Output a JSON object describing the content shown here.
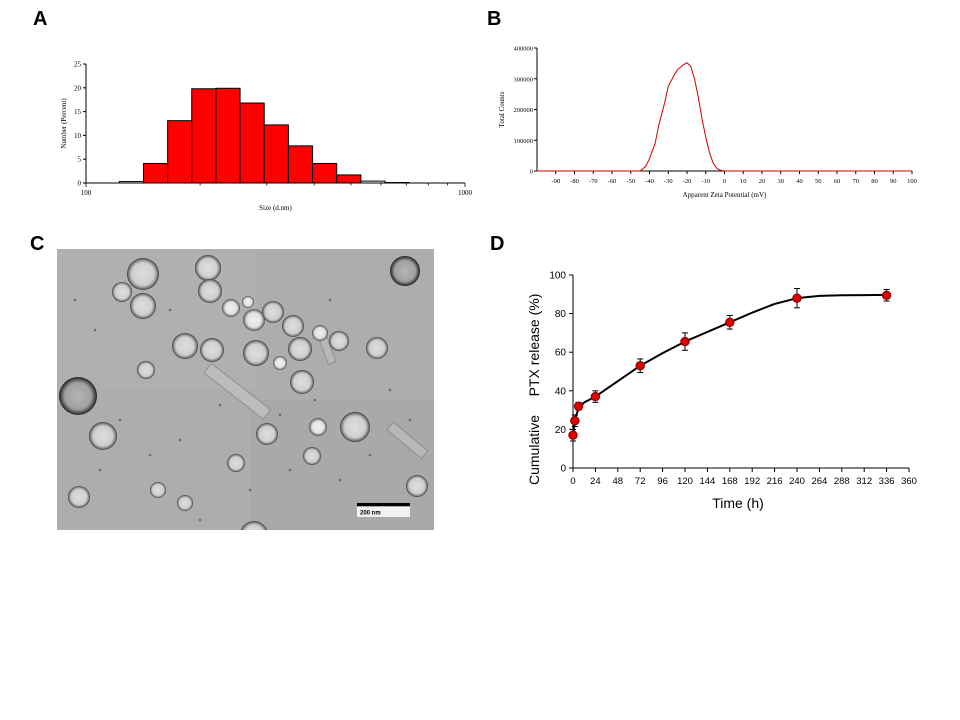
{
  "panels": {
    "a": "A",
    "b": "B",
    "c": "C",
    "d": "D"
  },
  "chart_data": [
    {
      "id": "A",
      "type": "bar",
      "xscale": "log",
      "xlabel": "Size (d.nm)",
      "ylabel": "Number (Percent)",
      "xlim": [
        100,
        1000
      ],
      "ylim": [
        0,
        25
      ],
      "ytick_labels": [
        "0",
        "5",
        "10",
        "15",
        "20",
        "25"
      ],
      "xtick_labels": [
        "100",
        "1000"
      ],
      "bin_edges": [
        122.4,
        141.8,
        164.2,
        190.1,
        220.2,
        255.0,
        295.3,
        342.0,
        396.1,
        458.7,
        531.2,
        615.1
      ],
      "values": [
        0.3,
        4.1,
        13.1,
        19.8,
        19.9,
        16.8,
        12.2,
        7.8,
        4.1,
        1.7,
        0.4,
        0.1
      ],
      "bar_color": "#ff0000"
    },
    {
      "id": "B",
      "type": "line",
      "xlabel": "Apparent Zeta Potential (mV)",
      "ylabel": "Total Counts",
      "xlim": [
        -100,
        100
      ],
      "ylim": [
        0,
        400000
      ],
      "xtick_labels": [
        "-90",
        "-80",
        "-70",
        "-60",
        "-50",
        "-40",
        "-30",
        "-20",
        "-10",
        "0",
        "10",
        "20",
        "30",
        "40",
        "50",
        "60",
        "70",
        "80",
        "90",
        "100"
      ],
      "ytick_labels": [
        "0",
        "100000",
        "200000",
        "300000",
        "400000"
      ],
      "x": [
        -100,
        -45,
        -42,
        -40,
        -37,
        -35,
        -32,
        -30,
        -27,
        -25,
        -22,
        -20,
        -18,
        -16,
        -14,
        -12,
        -10,
        -8,
        -6,
        -4,
        -2,
        0,
        100
      ],
      "y": [
        0,
        0,
        15000,
        40000,
        90000,
        150000,
        220000,
        275000,
        310000,
        330000,
        345000,
        352000,
        340000,
        300000,
        240000,
        170000,
        110000,
        60000,
        25000,
        8000,
        2000,
        0,
        0
      ],
      "line_color": "#cc0000"
    },
    {
      "id": "D",
      "type": "line",
      "xlabel": "Time (h)",
      "ylabel_part1": "Cumulative",
      "ylabel_part2": "PTX release (%)",
      "xlim": [
        0,
        360
      ],
      "ylim": [
        0,
        100
      ],
      "xticks": [
        0,
        24,
        48,
        72,
        96,
        120,
        144,
        168,
        192,
        216,
        240,
        264,
        288,
        312,
        336,
        360
      ],
      "xtick_labels": [
        "0",
        "24",
        "48",
        "72",
        "96",
        "120",
        "144",
        "168",
        "192",
        "216",
        "240",
        "264",
        "288",
        "312",
        "336",
        "360"
      ],
      "yticks": [
        0,
        20,
        40,
        60,
        80,
        100
      ],
      "ytick_labels": [
        "0",
        "20",
        "40",
        "60",
        "80",
        "100"
      ],
      "x": [
        0,
        2,
        6,
        24,
        72,
        120,
        168,
        240,
        336
      ],
      "y": [
        17,
        24.5,
        32,
        37,
        53,
        65.5,
        75.5,
        88,
        89.5
      ],
      "err": [
        3,
        3,
        2,
        3,
        3.5,
        4.5,
        3.5,
        5,
        3
      ],
      "fit_x": [
        0,
        2,
        6,
        12,
        24,
        48,
        72,
        96,
        120,
        144,
        168,
        192,
        216,
        240,
        264,
        288,
        312,
        336
      ],
      "fit_y": [
        17,
        25,
        31,
        34,
        37,
        45,
        53,
        59.5,
        65.5,
        70.5,
        75.5,
        80.5,
        85,
        88,
        89.2,
        89.5,
        89.6,
        89.7
      ],
      "marker_color": "#e00000"
    }
  ],
  "tem": {
    "scale_bar_label": "200 nm"
  }
}
